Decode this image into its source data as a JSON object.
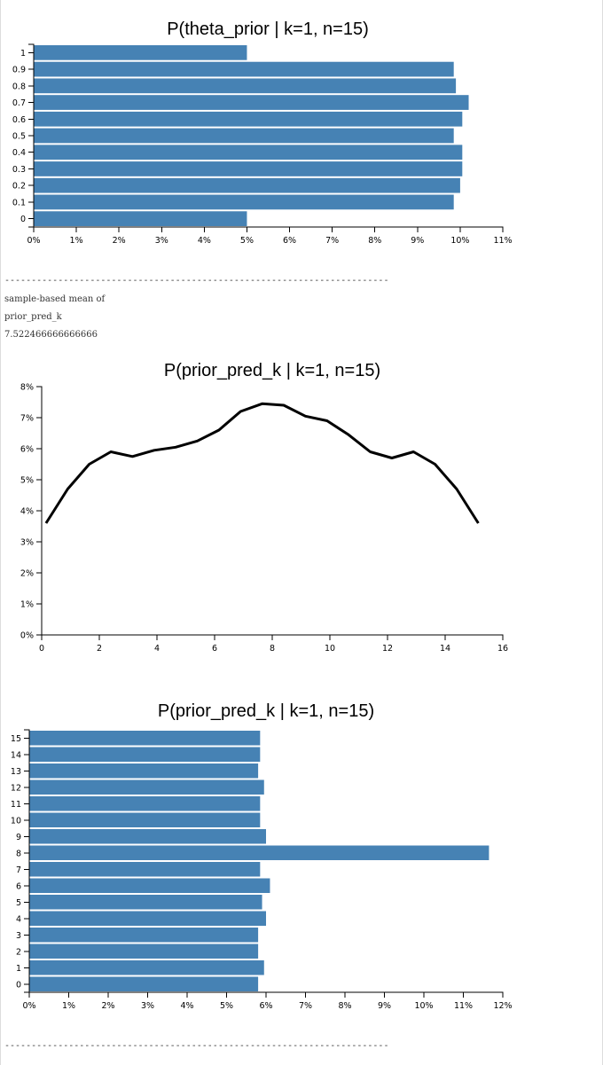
{
  "chart_data": [
    {
      "type": "bar",
      "orientation": "horizontal",
      "title": "P(theta_prior | k=1, n=15)",
      "categories": [
        "0",
        "0.1",
        "0.2",
        "0.3",
        "0.4",
        "0.5",
        "0.6",
        "0.7",
        "0.8",
        "0.9",
        "1"
      ],
      "values": [
        5.0,
        9.85,
        10.0,
        10.05,
        10.05,
        9.85,
        10.05,
        10.2,
        9.9,
        9.85,
        5.0
      ],
      "x_ticks": [
        "0%",
        "1%",
        "2%",
        "3%",
        "4%",
        "5%",
        "6%",
        "7%",
        "8%",
        "9%",
        "10%",
        "11%"
      ],
      "xlim": [
        0,
        11
      ],
      "color": "#4682b4"
    },
    {
      "type": "line",
      "title": "P(prior_pred_k | k=1, n=15)",
      "x": [
        0.15,
        0.9,
        1.65,
        2.4,
        3.15,
        3.9,
        4.65,
        5.4,
        6.15,
        6.9,
        7.65,
        8.4,
        9.15,
        9.9,
        10.65,
        11.4,
        12.15,
        12.9,
        13.65,
        14.4,
        15.15
      ],
      "y": [
        3.6,
        4.7,
        5.5,
        5.9,
        5.75,
        5.95,
        6.05,
        6.25,
        6.6,
        7.2,
        7.45,
        7.4,
        7.05,
        6.9,
        6.45,
        5.9,
        5.7,
        5.9,
        5.5,
        4.7,
        3.6
      ],
      "x_ticks": [
        "0",
        "2",
        "4",
        "6",
        "8",
        "10",
        "12",
        "14",
        "16"
      ],
      "y_ticks": [
        "0%",
        "1%",
        "2%",
        "3%",
        "4%",
        "5%",
        "6%",
        "7%",
        "8%"
      ],
      "xlim": [
        0,
        16
      ],
      "ylim": [
        0,
        8
      ],
      "color": "#000000"
    },
    {
      "type": "bar",
      "orientation": "horizontal",
      "title": "P(prior_pred_k | k=1, n=15)",
      "categories": [
        "0",
        "1",
        "2",
        "3",
        "4",
        "5",
        "6",
        "7",
        "8",
        "9",
        "10",
        "11",
        "12",
        "13",
        "14",
        "15"
      ],
      "values": [
        5.8,
        5.95,
        5.8,
        5.8,
        6.0,
        5.9,
        6.1,
        5.85,
        11.65,
        6.0,
        5.85,
        5.85,
        5.95,
        5.8,
        5.85,
        5.85
      ],
      "x_ticks": [
        "0%",
        "1%",
        "2%",
        "3%",
        "4%",
        "5%",
        "6%",
        "7%",
        "8%",
        "9%",
        "10%",
        "11%",
        "12%"
      ],
      "xlim": [
        0,
        12
      ],
      "color": "#4682b4"
    }
  ],
  "output": {
    "divider": "------------------------------------------------------------------------",
    "mean_label_line1": "sample-based mean of",
    "mean_label_line2": "prior_pred_k",
    "mean_value": "7.522466666666666"
  }
}
